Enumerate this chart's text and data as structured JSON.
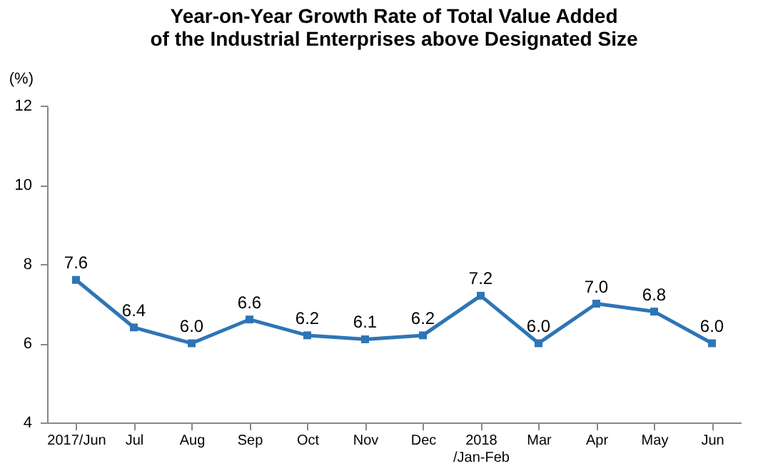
{
  "chart_data": {
    "type": "line",
    "title": [
      "Year-on-Year Growth Rate of Total Value Added",
      "of the Industrial Enterprises above Designated Size"
    ],
    "ylabel": "(%)",
    "categories": [
      "2017/Jun",
      "Jul",
      "Aug",
      "Sep",
      "Oct",
      "Nov",
      "Dec",
      "2018\n/Jan-Feb",
      "Mar",
      "Apr",
      "May",
      "Jun"
    ],
    "series": [
      {
        "color": "#2e75b6",
        "values": [
          7.6,
          6.4,
          6.0,
          6.6,
          6.2,
          6.1,
          6.2,
          7.2,
          6.0,
          7.0,
          6.8,
          6.0
        ],
        "value_labels": [
          "7.6",
          "6.4",
          "6.0",
          "6.6",
          "6.2",
          "6.1",
          "6.2",
          "7.2",
          "6.0",
          "7.0",
          "6.8",
          "6.0"
        ]
      }
    ],
    "ylim": [
      4,
      12
    ],
    "yticks": [
      4,
      6,
      8,
      10,
      12
    ],
    "grid": false,
    "legend": false,
    "marker": "square",
    "line_style": "solid"
  }
}
